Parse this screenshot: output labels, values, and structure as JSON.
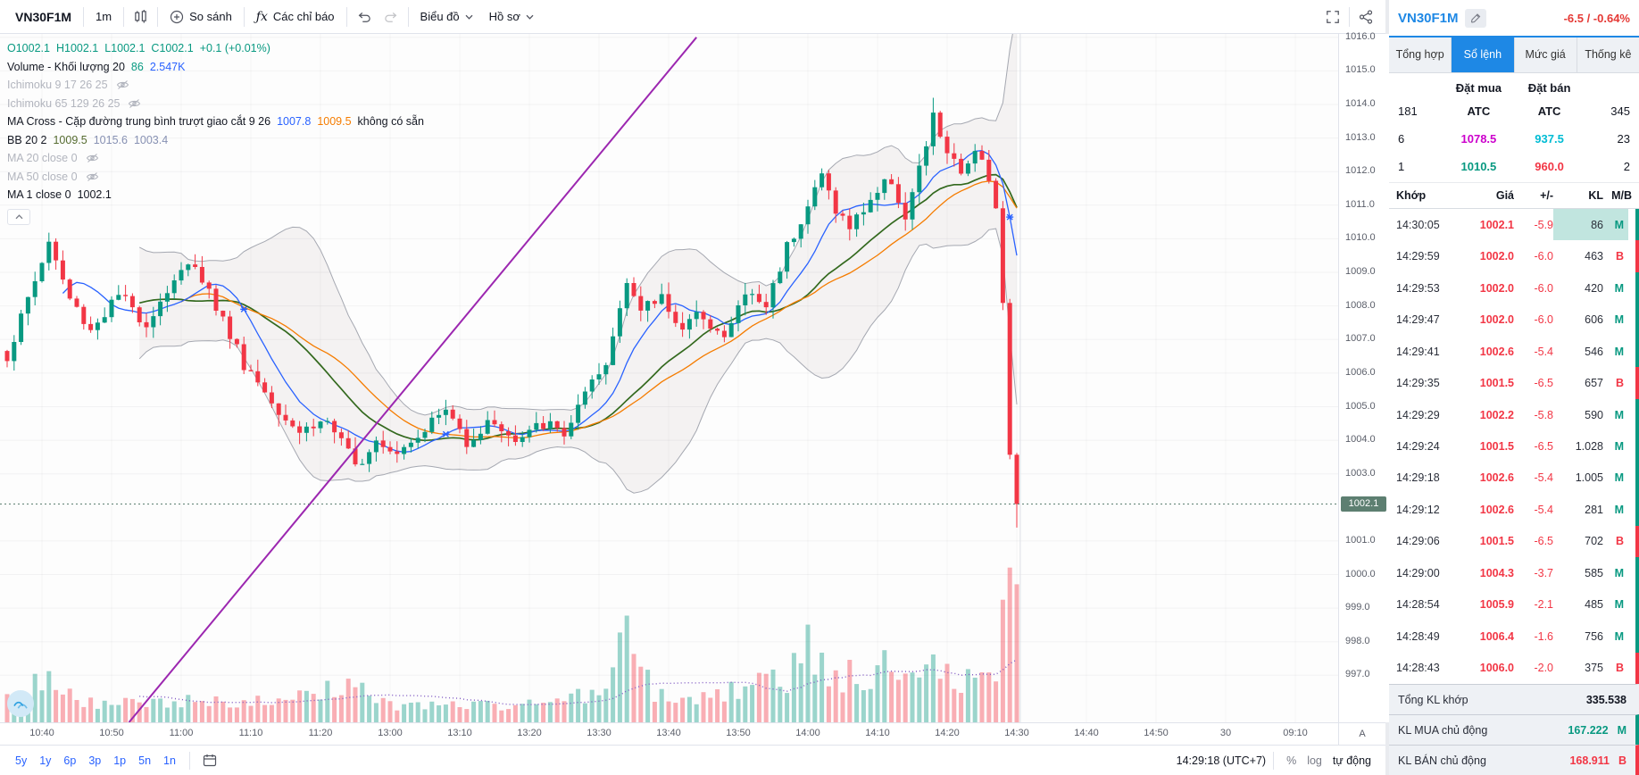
{
  "colors": {
    "up": "#089981",
    "down": "#f23645",
    "ma_fast": "#2962ff",
    "ma_slow": "#f57c00",
    "ma_mid": "#33691e",
    "bb": "#a5a8b1",
    "trend": "#9c27b0",
    "vol_ma": "#7e57c2",
    "badge": "#5d7f71",
    "accent": "#1e88e5",
    "ceiling": "#cc00cc",
    "floor": "#00bcd4"
  },
  "toolbar": {
    "symbol": "VN30F1M",
    "interval": "1m",
    "compare_label": "So sánh",
    "indicators_icon": "ƒx",
    "indicators_label": "Các chỉ báo",
    "chart_menu_label": "Biểu đồ",
    "profile_menu_label": "Hồ sơ"
  },
  "legend": {
    "ohlc": {
      "o": "O1002.1",
      "h": "H1002.1",
      "l": "L1002.1",
      "c": "C1002.1",
      "change": "+0.1 (+0.01%)"
    },
    "volume": {
      "label": "Volume - Khối lượng 20",
      "v1": "86",
      "v2": "2.547K"
    },
    "ichimoku1": "Ichimoku 9 17 26 25",
    "ichimoku2": "Ichimoku 65 129 26 25",
    "macross": {
      "label": "MA Cross - Cặp đường trung bình trượt giao cắt 9 26",
      "v1": "1007.8",
      "v2": "1009.5",
      "note": "không có sẵn"
    },
    "bb": {
      "label": "BB 20 2",
      "v1": "1009.5",
      "v2": "1015.6",
      "v3": "1003.4"
    },
    "ma20": "MA 20 close 0",
    "ma50": "MA 50 close 0",
    "ma1": {
      "label": "MA 1 close 0",
      "v": "1002.1"
    }
  },
  "price_axis": {
    "labels": [
      "1016.0",
      "1015.0",
      "1014.0",
      "1013.0",
      "1012.0",
      "1011.0",
      "1010.0",
      "1009.0",
      "1008.0",
      "1007.0",
      "1006.0",
      "1005.0",
      "1004.0",
      "1003.0",
      "1001.0",
      "1000.0",
      "999.0",
      "998.0",
      "997.0"
    ],
    "last_price": "1002.1"
  },
  "time_axis": {
    "corner_label": "A",
    "ticks": [
      {
        "i": 5,
        "label": "10:40"
      },
      {
        "i": 15,
        "label": "10:50"
      },
      {
        "i": 25,
        "label": "11:00"
      },
      {
        "i": 35,
        "label": "11:10"
      },
      {
        "i": 45,
        "label": "11:20"
      },
      {
        "i": 55,
        "label": "13:00"
      },
      {
        "i": 65,
        "label": "13:10"
      },
      {
        "i": 75,
        "label": "13:20"
      },
      {
        "i": 85,
        "label": "13:30"
      },
      {
        "i": 95,
        "label": "13:40"
      },
      {
        "i": 105,
        "label": "13:50"
      },
      {
        "i": 115,
        "label": "14:00"
      },
      {
        "i": 125,
        "label": "14:10"
      },
      {
        "i": 135,
        "label": "14:20"
      },
      {
        "i": 145,
        "label": "14:30"
      },
      {
        "i": 155,
        "label": "14:40"
      },
      {
        "i": 165,
        "label": "14:50"
      },
      {
        "i": 175,
        "label": "30"
      },
      {
        "i": 185,
        "label": "09:10"
      }
    ]
  },
  "bottom_toolbar": {
    "ranges": [
      "5y",
      "1y",
      "6p",
      "3p",
      "1p",
      "5n",
      "1n"
    ],
    "clock": "14:29:18 (UTC+7)",
    "percent": "%",
    "log": "log",
    "auto": "tự động"
  },
  "chart_data": {
    "type": "candlestick",
    "symbol": "VN30F1M",
    "interval": "1m",
    "last_price": 1002.1,
    "price_min": 995.6,
    "price_max": 1016.1,
    "candle_count": 146,
    "ma_fast": 9,
    "ma_slow": 26,
    "ma_mid": 20,
    "bb_period": 20,
    "bb_mult": 2,
    "session_break_index": 145.5,
    "trendline": {
      "from": [
        17.5,
        995.6
      ],
      "to": [
        99,
        1016.0
      ]
    },
    "close_keypoints": [
      [
        0,
        1006.5
      ],
      [
        3,
        1008.2
      ],
      [
        6,
        1009.9
      ],
      [
        9,
        1008.2
      ],
      [
        12,
        1007.3
      ],
      [
        16,
        1008.3
      ],
      [
        20,
        1007.5
      ],
      [
        24,
        1008.8
      ],
      [
        27,
        1009.3
      ],
      [
        30,
        1008.0
      ],
      [
        34,
        1006.3
      ],
      [
        38,
        1005.2
      ],
      [
        42,
        1004.3
      ],
      [
        46,
        1004.6
      ],
      [
        50,
        1003.2
      ],
      [
        53,
        1004.1
      ],
      [
        56,
        1003.7
      ],
      [
        60,
        1004.4
      ],
      [
        63,
        1004.9
      ],
      [
        66,
        1004.0
      ],
      [
        70,
        1004.6
      ],
      [
        73,
        1003.9
      ],
      [
        77,
        1004.5
      ],
      [
        80,
        1004.2
      ],
      [
        83,
        1005.3
      ],
      [
        86,
        1006.2
      ],
      [
        89,
        1008.9
      ],
      [
        91,
        1007.8
      ],
      [
        94,
        1008.3
      ],
      [
        97,
        1007.3
      ],
      [
        100,
        1007.8
      ],
      [
        103,
        1007.0
      ],
      [
        106,
        1008.4
      ],
      [
        109,
        1008.0
      ],
      [
        112,
        1009.8
      ],
      [
        115,
        1011.0
      ],
      [
        117,
        1011.9
      ],
      [
        119,
        1010.9
      ],
      [
        121,
        1010.3
      ],
      [
        124,
        1011.2
      ],
      [
        127,
        1011.8
      ],
      [
        129,
        1010.6
      ],
      [
        131,
        1012.0
      ],
      [
        133,
        1013.6
      ],
      [
        135,
        1012.6
      ],
      [
        137,
        1011.8
      ],
      [
        139,
        1012.8
      ],
      [
        141,
        1011.9
      ],
      [
        142,
        1011.0
      ],
      [
        143,
        1008.0
      ],
      [
        144,
        1003.5
      ],
      [
        145,
        1002.1
      ]
    ],
    "volume_keypoints": [
      [
        0,
        420
      ],
      [
        6,
        900
      ],
      [
        10,
        380
      ],
      [
        20,
        320
      ],
      [
        30,
        420
      ],
      [
        40,
        350
      ],
      [
        50,
        780
      ],
      [
        55,
        300
      ],
      [
        62,
        350
      ],
      [
        70,
        300
      ],
      [
        80,
        420
      ],
      [
        86,
        600
      ],
      [
        89,
        1600
      ],
      [
        93,
        500
      ],
      [
        100,
        420
      ],
      [
        106,
        650
      ],
      [
        112,
        800
      ],
      [
        115,
        1500
      ],
      [
        118,
        700
      ],
      [
        121,
        900
      ],
      [
        124,
        650
      ],
      [
        127,
        1200
      ],
      [
        130,
        800
      ],
      [
        133,
        1500
      ],
      [
        136,
        700
      ],
      [
        139,
        1100
      ],
      [
        142,
        900
      ],
      [
        143,
        1800
      ],
      [
        144,
        2300
      ],
      [
        145,
        2547
      ]
    ],
    "volume_max": 2800
  },
  "panel": {
    "symbol": "VN30F1M",
    "change": "-6.5 / -0.64%",
    "tabs": [
      {
        "label": "Tổng hợp",
        "active": false
      },
      {
        "label": "Sổ lệnh",
        "active": true
      },
      {
        "label": "Mức giá",
        "active": false
      },
      {
        "label": "Thống kê",
        "active": false
      }
    ],
    "book": {
      "buy_header": "Đặt mua",
      "sell_header": "Đặt bán",
      "rows": [
        {
          "bv": "181",
          "bp": "ATC",
          "sp": "ATC",
          "sv": "345",
          "bc": "dark",
          "sc": "dark"
        },
        {
          "bv": "6",
          "bp": "1078.5",
          "sp": "937.5",
          "sv": "23",
          "bc": "ceil",
          "sc": "floor"
        },
        {
          "bv": "1",
          "bp": "1010.5",
          "sp": "960.0",
          "sv": "2",
          "bc": "up",
          "sc": "down"
        }
      ]
    },
    "trades": {
      "headers": [
        "Khớp",
        "Giá",
        "+/-",
        "KL",
        "M/B"
      ],
      "rows": [
        {
          "t": "14:30:05",
          "p": "1002.1",
          "c": "-5.9",
          "v": "86",
          "s": "M",
          "flash": true
        },
        {
          "t": "14:29:59",
          "p": "1002.0",
          "c": "-6.0",
          "v": "463",
          "s": "B"
        },
        {
          "t": "14:29:53",
          "p": "1002.0",
          "c": "-6.0",
          "v": "420",
          "s": "M"
        },
        {
          "t": "14:29:47",
          "p": "1002.0",
          "c": "-6.0",
          "v": "606",
          "s": "M"
        },
        {
          "t": "14:29:41",
          "p": "1002.6",
          "c": "-5.4",
          "v": "546",
          "s": "M"
        },
        {
          "t": "14:29:35",
          "p": "1001.5",
          "c": "-6.5",
          "v": "657",
          "s": "B"
        },
        {
          "t": "14:29:29",
          "p": "1002.2",
          "c": "-5.8",
          "v": "590",
          "s": "M"
        },
        {
          "t": "14:29:24",
          "p": "1001.5",
          "c": "-6.5",
          "v": "1.028",
          "s": "M"
        },
        {
          "t": "14:29:18",
          "p": "1002.6",
          "c": "-5.4",
          "v": "1.005",
          "s": "M"
        },
        {
          "t": "14:29:12",
          "p": "1002.6",
          "c": "-5.4",
          "v": "281",
          "s": "M"
        },
        {
          "t": "14:29:06",
          "p": "1001.5",
          "c": "-6.5",
          "v": "702",
          "s": "B"
        },
        {
          "t": "14:29:00",
          "p": "1004.3",
          "c": "-3.7",
          "v": "585",
          "s": "M"
        },
        {
          "t": "14:28:54",
          "p": "1005.9",
          "c": "-2.1",
          "v": "485",
          "s": "M"
        },
        {
          "t": "14:28:49",
          "p": "1006.4",
          "c": "-1.6",
          "v": "756",
          "s": "M"
        },
        {
          "t": "14:28:43",
          "p": "1006.0",
          "c": "-2.0",
          "v": "375",
          "s": "B"
        }
      ]
    },
    "footer": [
      {
        "label": "Tổng KL khớp",
        "value": "335.538",
        "side": ""
      },
      {
        "label": "KL MUA chủ động",
        "value": "167.222",
        "side": "M"
      },
      {
        "label": "KL BÁN chủ động",
        "value": "168.911",
        "side": "B"
      }
    ]
  }
}
